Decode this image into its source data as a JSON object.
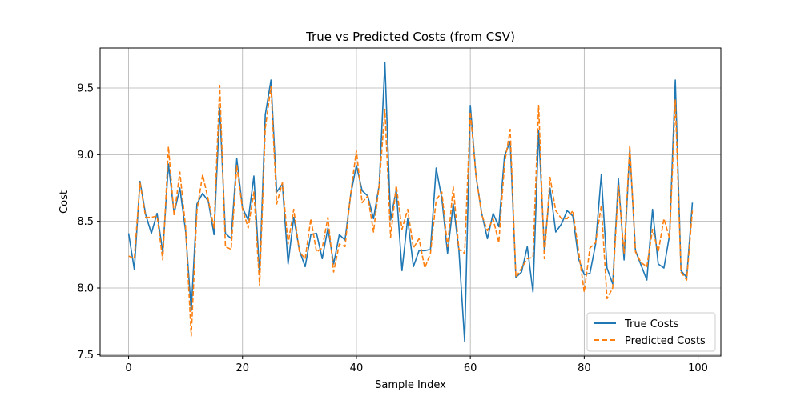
{
  "chart_data": {
    "type": "line",
    "title": "True vs Predicted Costs (from CSV)",
    "xlabel": "Sample Index",
    "ylabel": "Cost",
    "xlim": [
      -5,
      104
    ],
    "ylim": [
      7.49,
      9.8
    ],
    "xticks": [
      0,
      20,
      40,
      60,
      80,
      100
    ],
    "yticks": [
      7.5,
      8.0,
      8.5,
      9.0,
      9.5
    ],
    "xtick_labels": [
      "0",
      "20",
      "40",
      "60",
      "80",
      "100"
    ],
    "ytick_labels": [
      "7.5",
      "8.0",
      "8.5",
      "9.0",
      "9.5"
    ],
    "grid": true,
    "legend_position": "lower-right",
    "series": [
      {
        "name": "True Costs",
        "color": "#1f77b4",
        "style": "solid",
        "values": [
          8.41,
          8.14,
          8.8,
          8.55,
          8.41,
          8.56,
          8.27,
          8.93,
          8.56,
          8.75,
          8.43,
          7.83,
          8.63,
          8.71,
          8.65,
          8.4,
          9.35,
          8.41,
          8.37,
          8.97,
          8.6,
          8.51,
          8.84,
          8.1,
          9.3,
          9.56,
          8.72,
          8.78,
          8.18,
          8.53,
          8.28,
          8.16,
          8.4,
          8.41,
          8.22,
          8.45,
          8.18,
          8.4,
          8.36,
          8.7,
          8.92,
          8.73,
          8.69,
          8.52,
          8.77,
          9.69,
          8.51,
          8.74,
          8.13,
          8.52,
          8.16,
          8.28,
          8.28,
          8.29,
          8.9,
          8.67,
          8.26,
          8.63,
          8.28,
          7.6,
          9.37,
          8.84,
          8.56,
          8.37,
          8.56,
          8.46,
          8.99,
          9.1,
          8.08,
          8.12,
          8.31,
          7.97,
          9.18,
          8.29,
          8.75,
          8.42,
          8.48,
          8.58,
          8.54,
          8.22,
          8.1,
          8.11,
          8.33,
          8.85,
          8.15,
          8.03,
          8.82,
          8.21,
          9.04,
          8.28,
          8.17,
          8.06,
          8.59,
          8.18,
          8.15,
          8.4,
          9.56,
          8.13,
          8.08,
          8.64
        ]
      },
      {
        "name": "Predicted Costs",
        "color": "#ff7f0e",
        "style": "dashed",
        "values": [
          8.24,
          8.22,
          8.79,
          8.53,
          8.53,
          8.54,
          8.21,
          9.06,
          8.54,
          8.87,
          8.46,
          7.64,
          8.58,
          8.85,
          8.66,
          8.45,
          9.52,
          8.31,
          8.29,
          8.92,
          8.59,
          8.45,
          8.72,
          8.02,
          9.2,
          9.51,
          8.63,
          8.79,
          8.33,
          8.59,
          8.27,
          8.22,
          8.52,
          8.27,
          8.3,
          8.53,
          8.12,
          8.33,
          8.31,
          8.71,
          9.03,
          8.64,
          8.69,
          8.42,
          8.77,
          9.34,
          8.38,
          8.77,
          8.44,
          8.59,
          8.3,
          8.37,
          8.15,
          8.26,
          8.66,
          8.72,
          8.31,
          8.76,
          8.29,
          8.26,
          9.32,
          8.84,
          8.55,
          8.43,
          8.52,
          8.34,
          8.93,
          9.19,
          8.08,
          8.15,
          8.22,
          8.23,
          9.37,
          8.22,
          8.83,
          8.58,
          8.52,
          8.52,
          8.58,
          8.28,
          7.97,
          8.3,
          8.34,
          8.62,
          7.92,
          8.0,
          8.77,
          8.26,
          9.07,
          8.27,
          8.19,
          8.16,
          8.44,
          8.27,
          8.52,
          8.37,
          9.41,
          8.12,
          8.06,
          8.58
        ]
      }
    ]
  }
}
